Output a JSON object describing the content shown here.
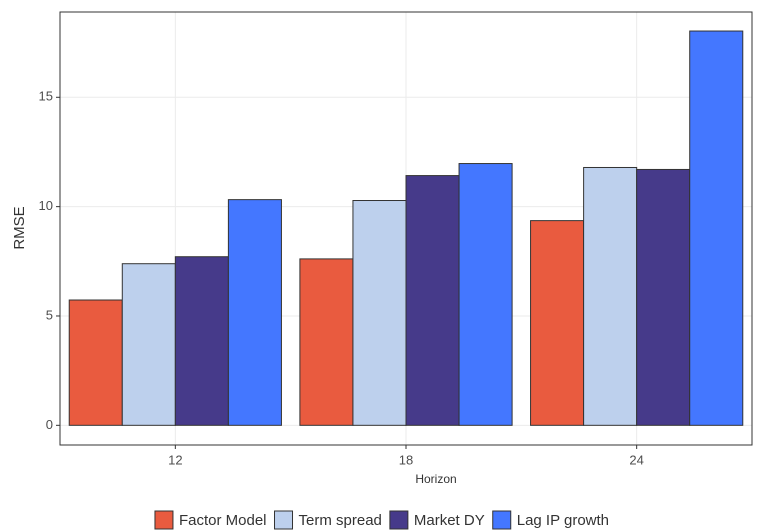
{
  "chart_data": {
    "type": "bar",
    "x_label": "Horizon",
    "y_label": "RMSE",
    "categories": [
      "12",
      "18",
      "24"
    ],
    "series": [
      {
        "name": "Factor Model",
        "color": "#e95b3f",
        "values": [
          5.73,
          7.61,
          9.36
        ]
      },
      {
        "name": "Term spread",
        "color": "#bdd0ed",
        "values": [
          7.39,
          10.28,
          11.79
        ]
      },
      {
        "name": "Market DY",
        "color": "#463a8a",
        "values": [
          7.71,
          11.42,
          11.7
        ]
      },
      {
        "name": "Lag IP growth",
        "color": "#4477ff",
        "values": [
          10.32,
          11.97,
          18.03
        ]
      }
    ],
    "ylim": [
      -0.9,
      18.9
    ],
    "yticks": [
      0,
      5,
      10,
      15
    ],
    "grid": true,
    "legend": "bottom"
  }
}
